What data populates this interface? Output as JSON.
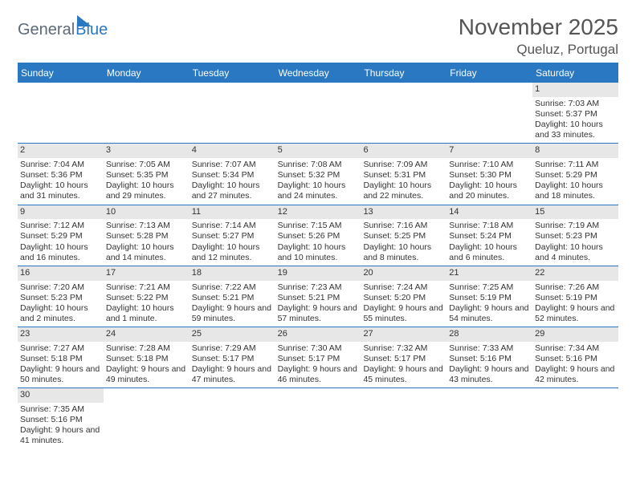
{
  "brand": {
    "word1": "General",
    "word2": "Blue",
    "color1": "#5d6a78",
    "color2": "#2a78c2"
  },
  "title": "November 2025",
  "location": "Queluz, Portugal",
  "accent": "#2a78c2",
  "grey": "#e7e7e7",
  "dayHeaders": [
    "Sunday",
    "Monday",
    "Tuesday",
    "Wednesday",
    "Thursday",
    "Friday",
    "Saturday"
  ],
  "weeks": [
    [
      {
        "empty": true
      },
      {
        "empty": true
      },
      {
        "empty": true
      },
      {
        "empty": true
      },
      {
        "empty": true
      },
      {
        "empty": true
      },
      {
        "n": "1",
        "sr": "Sunrise: 7:03 AM",
        "ss": "Sunset: 5:37 PM",
        "dl": "Daylight: 10 hours and 33 minutes."
      }
    ],
    [
      {
        "n": "2",
        "sr": "Sunrise: 7:04 AM",
        "ss": "Sunset: 5:36 PM",
        "dl": "Daylight: 10 hours and 31 minutes."
      },
      {
        "n": "3",
        "sr": "Sunrise: 7:05 AM",
        "ss": "Sunset: 5:35 PM",
        "dl": "Daylight: 10 hours and 29 minutes."
      },
      {
        "n": "4",
        "sr": "Sunrise: 7:07 AM",
        "ss": "Sunset: 5:34 PM",
        "dl": "Daylight: 10 hours and 27 minutes."
      },
      {
        "n": "5",
        "sr": "Sunrise: 7:08 AM",
        "ss": "Sunset: 5:32 PM",
        "dl": "Daylight: 10 hours and 24 minutes."
      },
      {
        "n": "6",
        "sr": "Sunrise: 7:09 AM",
        "ss": "Sunset: 5:31 PM",
        "dl": "Daylight: 10 hours and 22 minutes."
      },
      {
        "n": "7",
        "sr": "Sunrise: 7:10 AM",
        "ss": "Sunset: 5:30 PM",
        "dl": "Daylight: 10 hours and 20 minutes."
      },
      {
        "n": "8",
        "sr": "Sunrise: 7:11 AM",
        "ss": "Sunset: 5:29 PM",
        "dl": "Daylight: 10 hours and 18 minutes."
      }
    ],
    [
      {
        "n": "9",
        "sr": "Sunrise: 7:12 AM",
        "ss": "Sunset: 5:29 PM",
        "dl": "Daylight: 10 hours and 16 minutes."
      },
      {
        "n": "10",
        "sr": "Sunrise: 7:13 AM",
        "ss": "Sunset: 5:28 PM",
        "dl": "Daylight: 10 hours and 14 minutes."
      },
      {
        "n": "11",
        "sr": "Sunrise: 7:14 AM",
        "ss": "Sunset: 5:27 PM",
        "dl": "Daylight: 10 hours and 12 minutes."
      },
      {
        "n": "12",
        "sr": "Sunrise: 7:15 AM",
        "ss": "Sunset: 5:26 PM",
        "dl": "Daylight: 10 hours and 10 minutes."
      },
      {
        "n": "13",
        "sr": "Sunrise: 7:16 AM",
        "ss": "Sunset: 5:25 PM",
        "dl": "Daylight: 10 hours and 8 minutes."
      },
      {
        "n": "14",
        "sr": "Sunrise: 7:18 AM",
        "ss": "Sunset: 5:24 PM",
        "dl": "Daylight: 10 hours and 6 minutes."
      },
      {
        "n": "15",
        "sr": "Sunrise: 7:19 AM",
        "ss": "Sunset: 5:23 PM",
        "dl": "Daylight: 10 hours and 4 minutes."
      }
    ],
    [
      {
        "n": "16",
        "sr": "Sunrise: 7:20 AM",
        "ss": "Sunset: 5:23 PM",
        "dl": "Daylight: 10 hours and 2 minutes."
      },
      {
        "n": "17",
        "sr": "Sunrise: 7:21 AM",
        "ss": "Sunset: 5:22 PM",
        "dl": "Daylight: 10 hours and 1 minute."
      },
      {
        "n": "18",
        "sr": "Sunrise: 7:22 AM",
        "ss": "Sunset: 5:21 PM",
        "dl": "Daylight: 9 hours and 59 minutes."
      },
      {
        "n": "19",
        "sr": "Sunrise: 7:23 AM",
        "ss": "Sunset: 5:21 PM",
        "dl": "Daylight: 9 hours and 57 minutes."
      },
      {
        "n": "20",
        "sr": "Sunrise: 7:24 AM",
        "ss": "Sunset: 5:20 PM",
        "dl": "Daylight: 9 hours and 55 minutes."
      },
      {
        "n": "21",
        "sr": "Sunrise: 7:25 AM",
        "ss": "Sunset: 5:19 PM",
        "dl": "Daylight: 9 hours and 54 minutes."
      },
      {
        "n": "22",
        "sr": "Sunrise: 7:26 AM",
        "ss": "Sunset: 5:19 PM",
        "dl": "Daylight: 9 hours and 52 minutes."
      }
    ],
    [
      {
        "n": "23",
        "sr": "Sunrise: 7:27 AM",
        "ss": "Sunset: 5:18 PM",
        "dl": "Daylight: 9 hours and 50 minutes."
      },
      {
        "n": "24",
        "sr": "Sunrise: 7:28 AM",
        "ss": "Sunset: 5:18 PM",
        "dl": "Daylight: 9 hours and 49 minutes."
      },
      {
        "n": "25",
        "sr": "Sunrise: 7:29 AM",
        "ss": "Sunset: 5:17 PM",
        "dl": "Daylight: 9 hours and 47 minutes."
      },
      {
        "n": "26",
        "sr": "Sunrise: 7:30 AM",
        "ss": "Sunset: 5:17 PM",
        "dl": "Daylight: 9 hours and 46 minutes."
      },
      {
        "n": "27",
        "sr": "Sunrise: 7:32 AM",
        "ss": "Sunset: 5:17 PM",
        "dl": "Daylight: 9 hours and 45 minutes."
      },
      {
        "n": "28",
        "sr": "Sunrise: 7:33 AM",
        "ss": "Sunset: 5:16 PM",
        "dl": "Daylight: 9 hours and 43 minutes."
      },
      {
        "n": "29",
        "sr": "Sunrise: 7:34 AM",
        "ss": "Sunset: 5:16 PM",
        "dl": "Daylight: 9 hours and 42 minutes."
      }
    ],
    [
      {
        "n": "30",
        "sr": "Sunrise: 7:35 AM",
        "ss": "Sunset: 5:16 PM",
        "dl": "Daylight: 9 hours and 41 minutes."
      },
      {
        "empty": true
      },
      {
        "empty": true
      },
      {
        "empty": true
      },
      {
        "empty": true
      },
      {
        "empty": true
      },
      {
        "empty": true
      }
    ]
  ]
}
